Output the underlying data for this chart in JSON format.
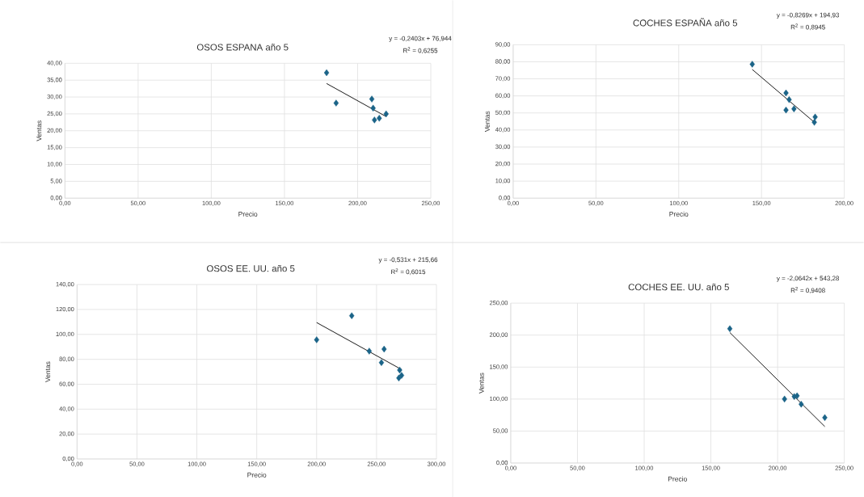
{
  "chart_data": [
    {
      "type": "scatter",
      "title": "OSOS ESPANA año 5",
      "xlabel": "Precio",
      "ylabel": "Ventas",
      "grid": true,
      "marker": "diamond",
      "xlim": [
        0,
        250
      ],
      "ylim": [
        0,
        40
      ],
      "xticks": [
        {
          "value": 0,
          "label": "0,00"
        },
        {
          "value": 50,
          "label": "50,00"
        },
        {
          "value": 100,
          "label": "100,00"
        },
        {
          "value": 150,
          "label": "150,00"
        },
        {
          "value": 200,
          "label": "200,00"
        },
        {
          "value": 250,
          "label": "250,00"
        }
      ],
      "yticks": [
        {
          "value": 0,
          "label": "0,00"
        },
        {
          "value": 5,
          "label": "5,00"
        },
        {
          "value": 10,
          "label": "10,00"
        },
        {
          "value": 15,
          "label": "15,00"
        },
        {
          "value": 20,
          "label": "20,00"
        },
        {
          "value": 25,
          "label": "25,00"
        },
        {
          "value": 30,
          "label": "30,00"
        },
        {
          "value": 35,
          "label": "35,00"
        },
        {
          "value": 40,
          "label": "40,00"
        }
      ],
      "series": [
        {
          "color": "#1b6488",
          "x": [
            178.8,
            185.3,
            209.7,
            210.6,
            219.5,
            211.5,
            214.8
          ],
          "values": [
            37.2,
            28.2,
            29.4,
            26.7,
            25.0,
            23.2,
            23.7
          ]
        },
        {
          "type": "line",
          "marker": "none",
          "color": "#000000",
          "x": [
            178.8,
            219.5
          ],
          "values": [
            34.0,
            24.2
          ]
        }
      ],
      "annotations": [
        "y = -0,2403x + 76,944",
        "R$^{2}$ = 0,6255"
      ]
    },
    {
      "type": "scatter",
      "title": "COCHES ESPAÑA año 5",
      "xlabel": "Precio",
      "ylabel": "Ventas",
      "grid": true,
      "marker": "diamond",
      "xlim": [
        0,
        200
      ],
      "ylim": [
        0,
        90
      ],
      "xticks": [
        {
          "value": 0,
          "label": "0,00"
        },
        {
          "value": 50,
          "label": "50,00"
        },
        {
          "value": 100,
          "label": "100,00"
        },
        {
          "value": 150,
          "label": "150,00"
        },
        {
          "value": 200,
          "label": "200,00"
        }
      ],
      "yticks": [
        {
          "value": 0,
          "label": "0,00"
        },
        {
          "value": 10,
          "label": "10,00"
        },
        {
          "value": 20,
          "label": "20,00"
        },
        {
          "value": 30,
          "label": "30,00"
        },
        {
          "value": 40,
          "label": "40,00"
        },
        {
          "value": 50,
          "label": "50,00"
        },
        {
          "value": 60,
          "label": "60,00"
        },
        {
          "value": 70,
          "label": "70,00"
        },
        {
          "value": 80,
          "label": "80,00"
        },
        {
          "value": 90,
          "label": "90,00"
        }
      ],
      "series": [
        {
          "color": "#1b6488",
          "x": [
            144.4,
            164.8,
            166.7,
            164.8,
            169.6,
            182.4,
            181.9
          ],
          "values": [
            78.6,
            61.7,
            57.8,
            51.7,
            52.4,
            47.6,
            44.5
          ]
        },
        {
          "type": "line",
          "marker": "none",
          "color": "#000000",
          "x": [
            144.4,
            182.4
          ],
          "values": [
            75.5,
            44.1
          ]
        }
      ],
      "annotations": [
        "y = -0,8269x + 194,93",
        "R$^{2}$ = 0,8945"
      ]
    },
    {
      "type": "scatter",
      "title": "OSOS EE. UU. año 5",
      "xlabel": "Precio",
      "ylabel": "Ventas",
      "grid": true,
      "marker": "diamond",
      "xlim": [
        0,
        300
      ],
      "ylim": [
        0,
        140
      ],
      "xticks": [
        {
          "value": 0,
          "label": "0,00"
        },
        {
          "value": 50,
          "label": "50,00"
        },
        {
          "value": 100,
          "label": "100,00"
        },
        {
          "value": 150,
          "label": "150,00"
        },
        {
          "value": 200,
          "label": "200,00"
        },
        {
          "value": 250,
          "label": "250,00"
        },
        {
          "value": 300,
          "label": "300,00"
        }
      ],
      "yticks": [
        {
          "value": 0,
          "label": "0,00"
        },
        {
          "value": 20,
          "label": "20,00"
        },
        {
          "value": 40,
          "label": "40,00"
        },
        {
          "value": 60,
          "label": "60,00"
        },
        {
          "value": 80,
          "label": "80,00"
        },
        {
          "value": 100,
          "label": "100,00"
        },
        {
          "value": 120,
          "label": "120,00"
        },
        {
          "value": 140,
          "label": "140,00"
        }
      ],
      "series": [
        {
          "color": "#1b6488",
          "x": [
            200,
            229.3,
            243.9,
            256.3,
            254.1,
            269.3,
            270.9,
            268.6
          ],
          "values": [
            95.7,
            115.0,
            86.6,
            88.2,
            77.4,
            71.4,
            67.1,
            65.0
          ]
        },
        {
          "type": "line",
          "marker": "none",
          "color": "#000000",
          "x": [
            200,
            270.9
          ],
          "values": [
            109.5,
            71.8
          ]
        }
      ],
      "annotations": [
        "y = -0,531x + 215,66",
        "R$^{2}$ = 0,6015"
      ]
    },
    {
      "type": "scatter",
      "title": "COCHES EE. UU. año 5",
      "xlabel": "Precio",
      "ylabel": "Ventas",
      "grid": true,
      "marker": "diamond",
      "xlim": [
        0,
        250
      ],
      "ylim": [
        0,
        250
      ],
      "xticks": [
        {
          "value": 0,
          "label": "0,00"
        },
        {
          "value": 50,
          "label": "50,00"
        },
        {
          "value": 100,
          "label": "100,00"
        },
        {
          "value": 150,
          "label": "150,00"
        },
        {
          "value": 200,
          "label": "200,00"
        },
        {
          "value": 250,
          "label": "250,00"
        }
      ],
      "yticks": [
        {
          "value": 0,
          "label": "0,00"
        },
        {
          "value": 50,
          "label": "50,00"
        },
        {
          "value": 100,
          "label": "100,00"
        },
        {
          "value": 150,
          "label": "150,00"
        },
        {
          "value": 200,
          "label": "200,00"
        },
        {
          "value": 250,
          "label": "250,00"
        }
      ],
      "series": [
        {
          "color": "#1b6488",
          "x": [
            164.2,
            205.2,
            214.6,
            212.5,
            217.7,
            235.4
          ],
          "values": [
            210,
            100,
            105,
            104,
            92,
            71
          ]
        },
        {
          "type": "line",
          "marker": "none",
          "color": "#000000",
          "x": [
            164.2,
            235.4
          ],
          "values": [
            204,
            57
          ]
        }
      ],
      "annotations": [
        "y = -2,0642x + 543,28",
        "R$^{2}$ = 0,9408"
      ]
    }
  ]
}
